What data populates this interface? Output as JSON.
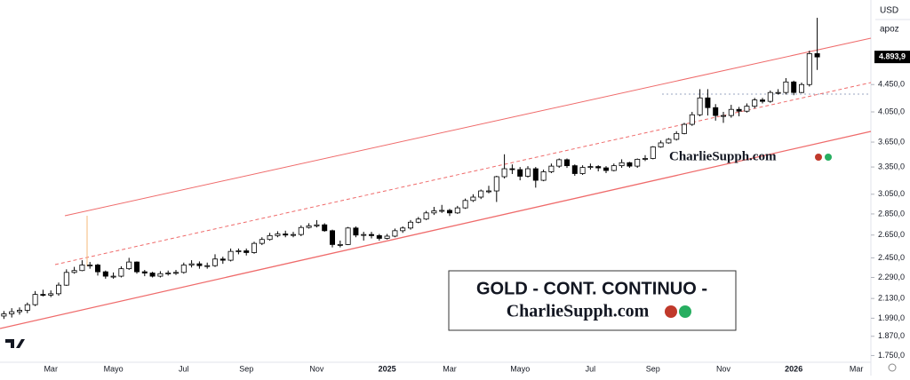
{
  "chart_data": {
    "type": "candlestick",
    "title": "GOLD - CONT. CONTINUO -",
    "watermark": "CharlieSupph.com",
    "currency": "USD",
    "scale_mode": "apoz",
    "log_scale": true,
    "categories": [
      null,
      null,
      null,
      null,
      null,
      null,
      "Mar",
      null,
      null,
      null,
      null,
      null,
      null,
      null,
      "Mayo",
      null,
      null,
      null,
      null,
      null,
      null,
      null,
      null,
      "Jul",
      null,
      null,
      null,
      null,
      null,
      null,
      null,
      "Sep",
      null,
      null,
      null,
      null,
      null,
      null,
      null,
      null,
      "Nov",
      null,
      null,
      null,
      null,
      null,
      null,
      null,
      null,
      "2025",
      null,
      null,
      null,
      null,
      null,
      null,
      null,
      "Mar",
      null,
      null,
      null,
      null,
      null,
      null,
      null,
      null,
      "Mayo",
      null,
      null,
      null,
      null,
      null,
      null,
      null,
      null,
      "Jul",
      null,
      null,
      null,
      null,
      null,
      null,
      null,
      "Sep",
      null,
      null,
      null,
      null,
      null,
      null,
      null,
      null,
      "Nov",
      null,
      null,
      null,
      null,
      null,
      null,
      null,
      null,
      "2026",
      null,
      null,
      null,
      null,
      null,
      null,
      null,
      "Mar",
      null
    ],
    "open": [
      2005,
      2020,
      2035,
      2045,
      2085,
      2160,
      2155,
      2165,
      2230,
      2330,
      2345,
      2390,
      2390,
      2335,
      2300,
      2300,
      2360,
      2415,
      2335,
      2325,
      2300,
      2320,
      2325,
      2330,
      2390,
      2400,
      2385,
      2385,
      2440,
      2430,
      2505,
      2510,
      2495,
      2575,
      2610,
      2645,
      2660,
      2650,
      2655,
      2720,
      2735,
      2745,
      2690,
      2565,
      2565,
      2715,
      2650,
      2655,
      2645,
      2620,
      2640,
      2690,
      2715,
      2770,
      2800,
      2860,
      2880,
      2885,
      2860,
      2910,
      2985,
      3020,
      3085,
      3085,
      3240,
      3330,
      3320,
      3245,
      3330,
      3200,
      3295,
      3360,
      3435,
      3365,
      3275,
      3345,
      3355,
      3340,
      3310,
      3365,
      3400,
      3360,
      3440,
      3450,
      3590,
      3640,
      3685,
      3760,
      3880,
      4010,
      4250,
      4110,
      4000,
      4000,
      4085,
      4060,
      4130,
      4220,
      4200,
      4330,
      4330,
      4490,
      4330,
      4450,
      4950,
      null,
      null,
      null,
      null,
      null,
      null
    ],
    "high": [
      2040,
      2060,
      2065,
      2100,
      2185,
      2195,
      2190,
      2250,
      2355,
      2375,
      2430,
      2415,
      2400,
      2345,
      2330,
      2380,
      2450,
      2420,
      2350,
      2335,
      2340,
      2345,
      2350,
      2410,
      2430,
      2420,
      2410,
      2480,
      2460,
      2530,
      2530,
      2530,
      2590,
      2630,
      2670,
      2685,
      2690,
      2680,
      2740,
      2760,
      2790,
      2760,
      2700,
      2600,
      2725,
      2730,
      2680,
      2680,
      2660,
      2660,
      2710,
      2730,
      2790,
      2820,
      2880,
      2920,
      2940,
      2900,
      2930,
      3005,
      3050,
      3100,
      3140,
      3250,
      3500,
      3380,
      3350,
      3360,
      3350,
      3320,
      3390,
      3450,
      3450,
      3380,
      3370,
      3390,
      3370,
      3360,
      3390,
      3440,
      3410,
      3450,
      3490,
      3600,
      3670,
      3700,
      3790,
      3900,
      4050,
      4380,
      4380,
      4160,
      4050,
      4150,
      4120,
      4170,
      4250,
      4250,
      4360,
      4380,
      4550,
      4510,
      4480,
      5000,
      5600,
      null,
      null,
      null,
      null,
      null,
      null
    ],
    "low": [
      1985,
      1995,
      2015,
      2025,
      2075,
      2145,
      2140,
      2150,
      2225,
      2320,
      2340,
      2360,
      2305,
      2280,
      2280,
      2290,
      2350,
      2320,
      2300,
      2290,
      2290,
      2305,
      2310,
      2320,
      2370,
      2360,
      2360,
      2375,
      2400,
      2420,
      2480,
      2470,
      2485,
      2560,
      2600,
      2630,
      2630,
      2630,
      2640,
      2710,
      2720,
      2680,
      2540,
      2540,
      2560,
      2630,
      2600,
      2620,
      2600,
      2610,
      2630,
      2670,
      2700,
      2760,
      2790,
      2840,
      2860,
      2830,
      2850,
      2900,
      2970,
      3000,
      3060,
      2970,
      3220,
      3270,
      3200,
      3230,
      3120,
      3190,
      3280,
      3340,
      3340,
      3250,
      3260,
      3320,
      3300,
      3280,
      3300,
      3340,
      3340,
      3340,
      3420,
      3440,
      3580,
      3630,
      3670,
      3750,
      3860,
      3990,
      4000,
      3930,
      3900,
      3970,
      3990,
      4040,
      4100,
      4170,
      4180,
      4300,
      4300,
      4290,
      4320,
      4420,
      4680,
      null,
      null,
      null,
      null,
      null,
      null
    ],
    "close": [
      2020,
      2035,
      2045,
      2085,
      2160,
      2155,
      2165,
      2230,
      2330,
      2345,
      2390,
      2390,
      2335,
      2300,
      2300,
      2360,
      2415,
      2335,
      2325,
      2300,
      2320,
      2325,
      2330,
      2390,
      2400,
      2385,
      2385,
      2440,
      2430,
      2505,
      2510,
      2495,
      2575,
      2610,
      2645,
      2660,
      2650,
      2655,
      2720,
      2735,
      2745,
      2690,
      2565,
      2565,
      2715,
      2650,
      2655,
      2645,
      2620,
      2640,
      2690,
      2715,
      2770,
      2800,
      2860,
      2880,
      2885,
      2860,
      2910,
      2985,
      3020,
      3085,
      3085,
      3240,
      3330,
      3320,
      3245,
      3330,
      3200,
      3295,
      3360,
      3435,
      3365,
      3275,
      3345,
      3355,
      3340,
      3310,
      3365,
      3400,
      3360,
      3440,
      3450,
      3590,
      3640,
      3685,
      3760,
      3880,
      4010,
      4250,
      4110,
      4000,
      4000,
      4085,
      4060,
      4130,
      4220,
      4200,
      4330,
      4330,
      4490,
      4330,
      4450,
      4950,
      4893.9,
      null,
      null,
      null,
      null,
      null,
      null
    ],
    "up_color": "#ffffff",
    "down_color": "#000000",
    "wick_color": "#000000",
    "last_price": {
      "value": 4893.9,
      "label": "4.893,9"
    },
    "ylim": [
      1710,
      5900
    ],
    "yticks": [
      {
        "value": 1750,
        "label": "1.750,0"
      },
      {
        "value": 1870,
        "label": "1.870,0"
      },
      {
        "value": 1990,
        "label": "1.990,0"
      },
      {
        "value": 2130,
        "label": "2.130,0"
      },
      {
        "value": 2290,
        "label": "2.290,0"
      },
      {
        "value": 2450,
        "label": "2.450,0"
      },
      {
        "value": 2650,
        "label": "2.650,0"
      },
      {
        "value": 2850,
        "label": "2.850,0"
      },
      {
        "value": 3050,
        "label": "3.050,0"
      },
      {
        "value": 3350,
        "label": "3.350,0"
      },
      {
        "value": 3650,
        "label": "3.650,0"
      },
      {
        "value": 4050,
        "label": "4.050,0"
      },
      {
        "value": 4450,
        "label": "4.450,0"
      }
    ],
    "grid": false
  }
}
